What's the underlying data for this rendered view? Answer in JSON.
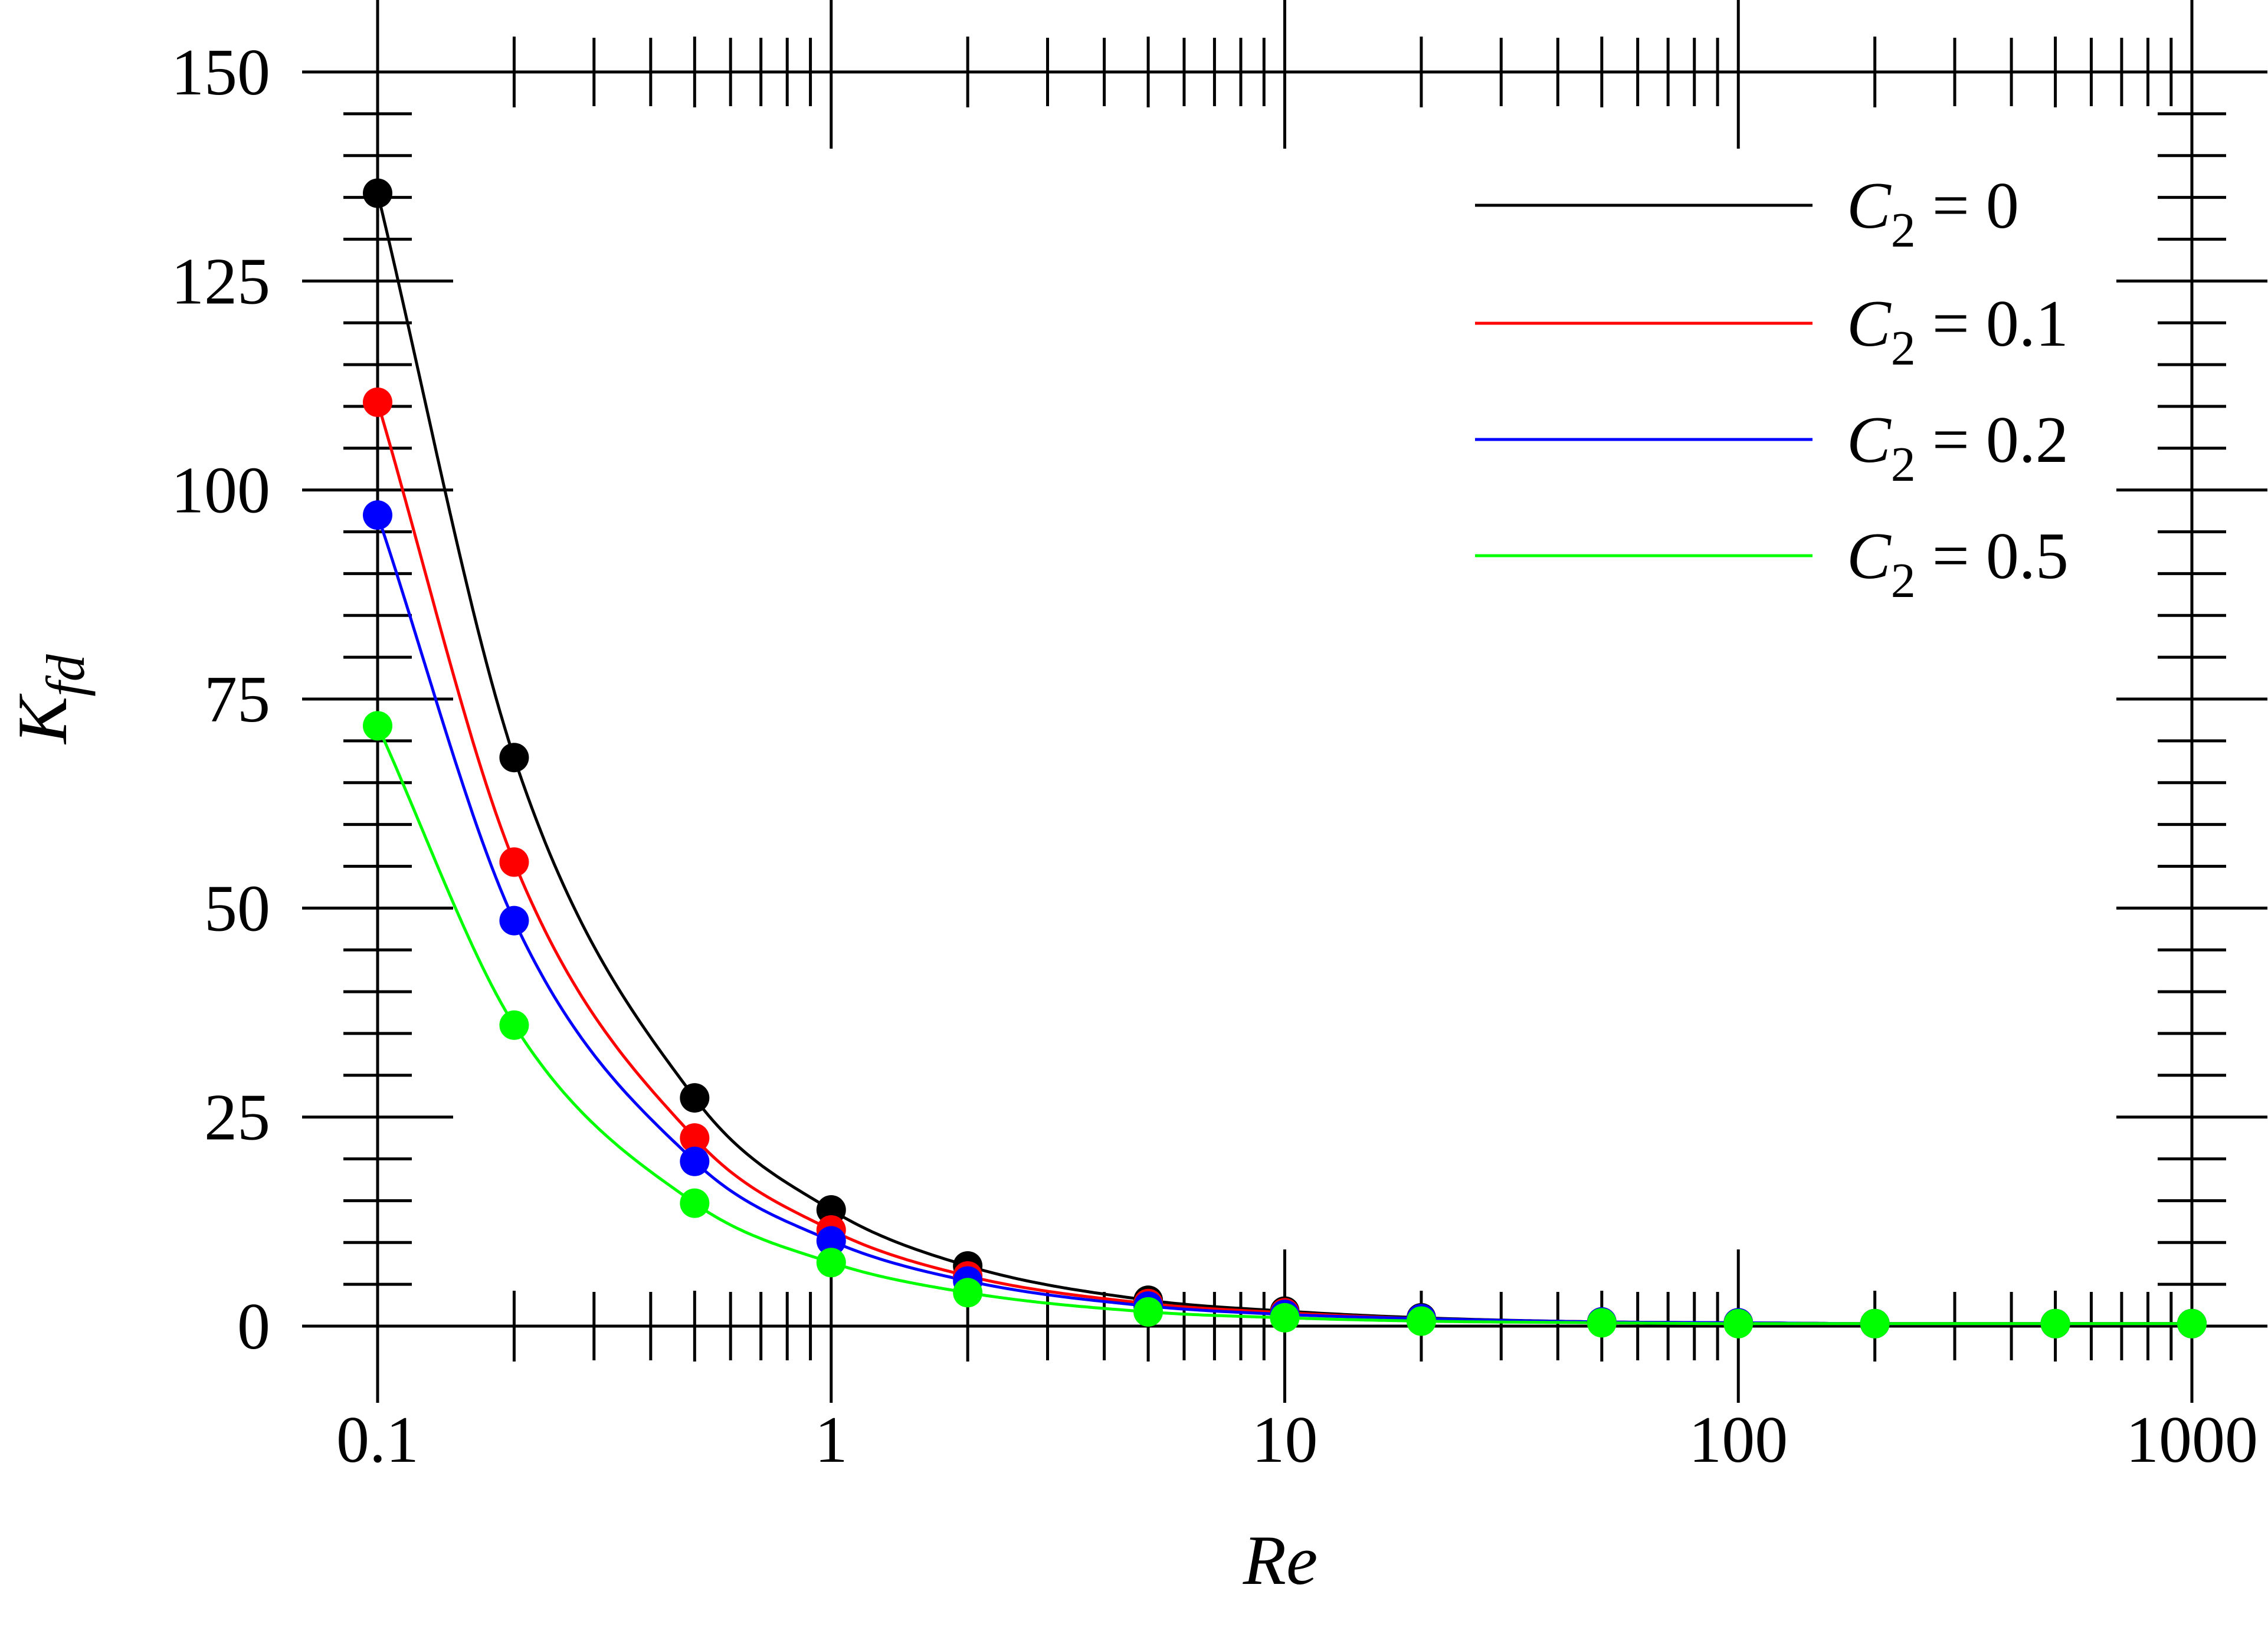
{
  "chart_data": {
    "type": "line",
    "xlabel": "Re",
    "ylabel": {
      "main": "K",
      "sub": "fd"
    },
    "x_scale": "log",
    "xlim": [
      0.1,
      1000
    ],
    "ylim": [
      0,
      150
    ],
    "x_tick_labels": [
      "0.1",
      "1",
      "10",
      "100",
      "1000"
    ],
    "y_tick_labels": [
      "0",
      "25",
      "50",
      "75",
      "100",
      "125",
      "150"
    ],
    "grid": false,
    "legend_position": "top-right",
    "series": [
      {
        "name": "C2 = 0",
        "legend": {
          "sym": "C",
          "sub": "2",
          "rest": " = 0"
        },
        "color": "#000000",
        "x": [
          0.1,
          0.2,
          0.5,
          1,
          2,
          5,
          10,
          20,
          50,
          100,
          200,
          500,
          1000
        ],
        "y": [
          135.5,
          68,
          27.3,
          13.9,
          7.2,
          3.1,
          1.8,
          1.0,
          0.5,
          0.4,
          0.3,
          0.3,
          0.3
        ]
      },
      {
        "name": "C2 = 0.1",
        "legend": {
          "sym": "C",
          "sub": "2",
          "rest": " = 0.1"
        },
        "color": "#ff0000",
        "x": [
          0.1,
          0.2,
          0.5,
          1,
          2,
          5,
          10,
          20,
          50,
          100,
          200,
          500,
          1000
        ],
        "y": [
          110.5,
          55.5,
          22.5,
          11.5,
          6.0,
          2.7,
          1.6,
          0.9,
          0.5,
          0.4,
          0.3,
          0.3,
          0.3
        ]
      },
      {
        "name": "C2 = 0.2",
        "legend": {
          "sym": "C",
          "sub": "2",
          "rest": " = 0.2"
        },
        "color": "#0000ff",
        "x": [
          0.1,
          0.2,
          0.5,
          1,
          2,
          5,
          10,
          20,
          50,
          100,
          200,
          500,
          1000
        ],
        "y": [
          97,
          48.5,
          19.7,
          10.2,
          5.4,
          2.4,
          1.4,
          0.9,
          0.5,
          0.4,
          0.3,
          0.3,
          0.3
        ]
      },
      {
        "name": "C2 = 0.5",
        "legend": {
          "sym": "C",
          "sub": "2",
          "rest": " = 0.5"
        },
        "color": "#00ff00",
        "x": [
          0.1,
          0.2,
          0.5,
          1,
          2,
          5,
          10,
          20,
          50,
          100,
          200,
          500,
          1000
        ],
        "y": [
          71.8,
          36.0,
          14.7,
          7.6,
          4.0,
          1.7,
          1.0,
          0.6,
          0.4,
          0.3,
          0.3,
          0.3,
          0.3
        ]
      }
    ]
  }
}
